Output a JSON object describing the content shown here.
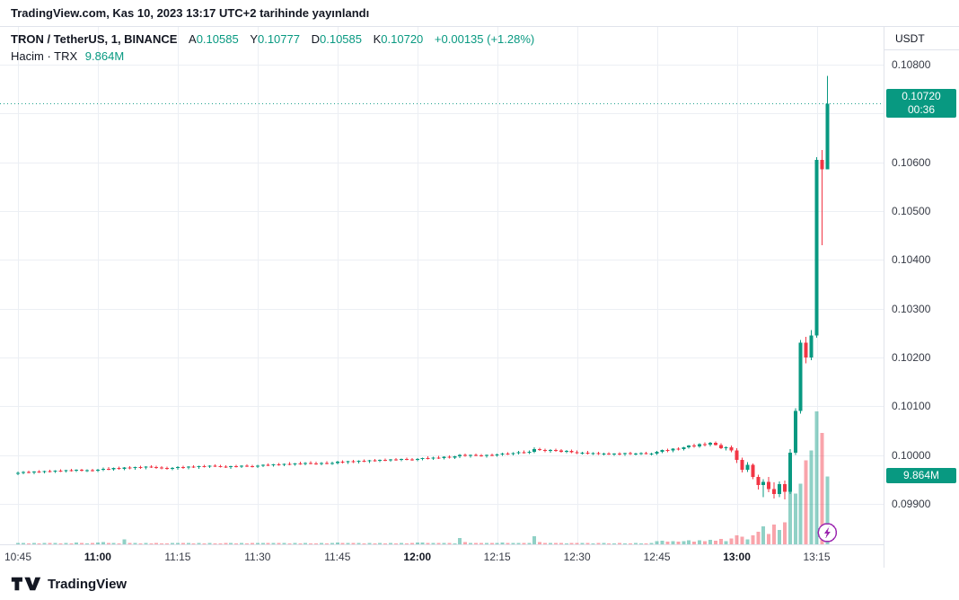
{
  "publish_bar": {
    "text": "TradingView.com, Kas 10, 2023 13:17 UTC+2 tarihinde yayınlandı"
  },
  "legend": {
    "symbol": "TRON / TetherUS, 1, BINANCE",
    "fields": [
      {
        "label": "A",
        "value": "0.10585"
      },
      {
        "label": "Y",
        "value": "0.10777"
      },
      {
        "label": "D",
        "value": "0.10585"
      },
      {
        "label": "K",
        "value": "0.10720"
      }
    ],
    "change": "+0.00135 (+1.28%)",
    "volume_row": {
      "label": "Hacim · TRX",
      "value": "9.864M"
    }
  },
  "price_axis": {
    "unit": "USDT",
    "ticks": [
      "0.10800",
      "0.10700",
      "0.10600",
      "0.10500",
      "0.10400",
      "0.10300",
      "0.10200",
      "0.10100",
      "0.10000",
      "0.09900"
    ],
    "last_price_badge": {
      "price": "0.10720",
      "countdown": "00:36"
    },
    "volume_badge": "9.864M"
  },
  "time_axis": {
    "ticks": [
      {
        "label": "10:45",
        "index": 0,
        "bold": false
      },
      {
        "label": "11:00",
        "index": 15,
        "bold": true
      },
      {
        "label": "11:15",
        "index": 30,
        "bold": false
      },
      {
        "label": "11:30",
        "index": 45,
        "bold": false
      },
      {
        "label": "11:45",
        "index": 60,
        "bold": false
      },
      {
        "label": "12:00",
        "index": 75,
        "bold": true
      },
      {
        "label": "12:15",
        "index": 90,
        "bold": false
      },
      {
        "label": "12:30",
        "index": 105,
        "bold": false
      },
      {
        "label": "12:45",
        "index": 120,
        "bold": false
      },
      {
        "label": "13:00",
        "index": 135,
        "bold": true
      },
      {
        "label": "13:15",
        "index": 150,
        "bold": false
      }
    ]
  },
  "footer": {
    "brand": "TradingView"
  },
  "colors": {
    "up": "#089981",
    "down": "#f23645",
    "vol_up": "rgba(8,153,129,0.45)",
    "vol_down": "rgba(242,54,69,0.45)",
    "grid": "#eceff4",
    "badge_bg": "#089981",
    "border": "#e0e3eb",
    "event_icon": "#9c27b0"
  },
  "chart_data": {
    "type": "candlestick+volume",
    "symbol": "TRON / TetherUS (TRX/USDT)",
    "exchange": "BINANCE",
    "interval": "1 minute",
    "time_start": "10:45",
    "time_end": "13:17",
    "current_bar": {
      "open": 0.10585,
      "high": 0.10777,
      "low": 0.10585,
      "close": 0.1072,
      "volume": "9.864M",
      "countdown": "00:36"
    },
    "ylim": [
      0.09817,
      0.10877
    ],
    "grid": true,
    "scale_note": "candles = [open,high,low,close,volume]; prices as integers in 1e-5 USDT; volume in thousands of TRX",
    "event_marker": {
      "name": "lightning-event",
      "candle_index": 152,
      "color": "#9c27b0"
    },
    "candles": [
      [
        9962,
        9966,
        9959,
        9963,
        210
      ],
      [
        9963,
        9967,
        9961,
        9965,
        180
      ],
      [
        9965,
        9968,
        9962,
        9964,
        150
      ],
      [
        9964,
        9967,
        9961,
        9966,
        190
      ],
      [
        9966,
        9969,
        9963,
        9965,
        160
      ],
      [
        9965,
        9968,
        9962,
        9967,
        220
      ],
      [
        9967,
        9970,
        9964,
        9966,
        170
      ],
      [
        9966,
        9969,
        9963,
        9968,
        200
      ],
      [
        9968,
        9971,
        9965,
        9967,
        150
      ],
      [
        9967,
        9970,
        9964,
        9969,
        180
      ],
      [
        9969,
        9972,
        9966,
        9968,
        160
      ],
      [
        9968,
        9971,
        9965,
        9970,
        240
      ],
      [
        9970,
        9972,
        9966,
        9968,
        170
      ],
      [
        9968,
        9971,
        9965,
        9969,
        150
      ],
      [
        9969,
        9972,
        9966,
        9968,
        190
      ],
      [
        9968,
        9972,
        9965,
        9970,
        260
      ],
      [
        9970,
        9974,
        9967,
        9972,
        310
      ],
      [
        9972,
        9975,
        9969,
        9971,
        200
      ],
      [
        9971,
        9974,
        9968,
        9973,
        180
      ],
      [
        9973,
        9976,
        9970,
        9972,
        160
      ],
      [
        9972,
        9975,
        9969,
        9974,
        700
      ],
      [
        9974,
        9977,
        9971,
        9973,
        170
      ],
      [
        9973,
        9976,
        9970,
        9975,
        190
      ],
      [
        9975,
        9978,
        9972,
        9974,
        150
      ],
      [
        9974,
        9977,
        9971,
        9976,
        180
      ],
      [
        9976,
        9979,
        9973,
        9975,
        160
      ],
      [
        9975,
        9978,
        9972,
        9974,
        170
      ],
      [
        9974,
        9977,
        9971,
        9973,
        150
      ],
      [
        9973,
        9976,
        9970,
        9972,
        160
      ],
      [
        9972,
        9975,
        9969,
        9973,
        180
      ],
      [
        9973,
        9977,
        9970,
        9975,
        200
      ],
      [
        9975,
        9978,
        9972,
        9974,
        170
      ],
      [
        9974,
        9977,
        9971,
        9976,
        190
      ],
      [
        9976,
        9979,
        9973,
        9975,
        160
      ],
      [
        9975,
        9978,
        9972,
        9977,
        180
      ],
      [
        9977,
        9980,
        9974,
        9976,
        150
      ],
      [
        9976,
        9979,
        9973,
        9978,
        170
      ],
      [
        9978,
        9981,
        9975,
        9977,
        160
      ],
      [
        9977,
        9980,
        9974,
        9976,
        150
      ],
      [
        9976,
        9979,
        9973,
        9975,
        170
      ],
      [
        9975,
        9978,
        9972,
        9977,
        190
      ],
      [
        9977,
        9980,
        9974,
        9976,
        160
      ],
      [
        9976,
        9979,
        9973,
        9978,
        180
      ],
      [
        9978,
        9981,
        9975,
        9977,
        150
      ],
      [
        9977,
        9980,
        9974,
        9976,
        170
      ],
      [
        9976,
        9980,
        9973,
        9978,
        200
      ],
      [
        9978,
        9981,
        9975,
        9980,
        220
      ],
      [
        9980,
        9983,
        9977,
        9979,
        180
      ],
      [
        9979,
        9982,
        9976,
        9981,
        190
      ],
      [
        9981,
        9984,
        9978,
        9980,
        170
      ],
      [
        9980,
        9983,
        9977,
        9982,
        210
      ],
      [
        9982,
        9985,
        9979,
        9981,
        160
      ],
      [
        9981,
        9984,
        9978,
        9983,
        180
      ],
      [
        9983,
        9986,
        9980,
        9982,
        150
      ],
      [
        9982,
        9985,
        9979,
        9984,
        170
      ],
      [
        9984,
        9987,
        9981,
        9983,
        160
      ],
      [
        9983,
        9986,
        9980,
        9982,
        150
      ],
      [
        9982,
        9985,
        9979,
        9984,
        190
      ],
      [
        9984,
        9987,
        9981,
        9983,
        160
      ],
      [
        9983,
        9986,
        9980,
        9984,
        170
      ],
      [
        9984,
        9988,
        9981,
        9986,
        230
      ],
      [
        9986,
        9989,
        9983,
        9985,
        180
      ],
      [
        9985,
        9988,
        9982,
        9987,
        200
      ],
      [
        9987,
        9990,
        9984,
        9986,
        170
      ],
      [
        9986,
        9989,
        9983,
        9988,
        190
      ],
      [
        9988,
        9991,
        9985,
        9987,
        160
      ],
      [
        9987,
        9990,
        9984,
        9989,
        180
      ],
      [
        9989,
        9992,
        9986,
        9988,
        150
      ],
      [
        9988,
        9991,
        9985,
        9990,
        170
      ],
      [
        9990,
        9993,
        9987,
        9989,
        160
      ],
      [
        9989,
        9992,
        9986,
        9991,
        180
      ],
      [
        9991,
        9994,
        9988,
        9990,
        150
      ],
      [
        9990,
        9993,
        9987,
        9992,
        170
      ],
      [
        9992,
        9995,
        9989,
        9991,
        160
      ],
      [
        9991,
        9994,
        9988,
        9990,
        180
      ],
      [
        9990,
        9994,
        9987,
        9992,
        260
      ],
      [
        9992,
        9995,
        9989,
        9994,
        240
      ],
      [
        9994,
        9997,
        9991,
        9993,
        200
      ],
      [
        9993,
        9996,
        9990,
        9995,
        180
      ],
      [
        9995,
        9998,
        9992,
        9994,
        190
      ],
      [
        9994,
        9997,
        9991,
        9996,
        170
      ],
      [
        9996,
        9999,
        9993,
        9995,
        180
      ],
      [
        9995,
        9998,
        9992,
        9997,
        160
      ],
      [
        9997,
        10002,
        9994,
        10000,
        900
      ],
      [
        10000,
        10003,
        9996,
        9998,
        300
      ],
      [
        9998,
        10001,
        9995,
        10000,
        220
      ],
      [
        10000,
        10003,
        9997,
        9999,
        190
      ],
      [
        9999,
        10002,
        9996,
        9998,
        170
      ],
      [
        9998,
        10001,
        9995,
        10000,
        180
      ],
      [
        10000,
        10003,
        9997,
        9999,
        190
      ],
      [
        9999,
        10003,
        9996,
        10001,
        210
      ],
      [
        10001,
        10005,
        9998,
        10003,
        230
      ],
      [
        10003,
        10006,
        10000,
        10002,
        190
      ],
      [
        10002,
        10006,
        9999,
        10004,
        180
      ],
      [
        10004,
        10008,
        10001,
        10006,
        200
      ],
      [
        10006,
        10009,
        10003,
        10005,
        170
      ],
      [
        10005,
        10009,
        10002,
        10007,
        190
      ],
      [
        10007,
        10016,
        10004,
        10012,
        1150
      ],
      [
        10012,
        10015,
        10008,
        10010,
        340
      ],
      [
        10010,
        10013,
        10006,
        10008,
        220
      ],
      [
        10008,
        10012,
        10005,
        10010,
        190
      ],
      [
        10010,
        10013,
        10007,
        10009,
        170
      ],
      [
        10009,
        10012,
        10005,
        10007,
        180
      ],
      [
        10007,
        10010,
        10004,
        10008,
        160
      ],
      [
        10008,
        10011,
        10004,
        10006,
        170
      ],
      [
        10006,
        10009,
        10002,
        10004,
        190
      ],
      [
        10004,
        10007,
        10001,
        10005,
        170
      ],
      [
        10005,
        10008,
        10001,
        10003,
        180
      ],
      [
        10003,
        10006,
        10000,
        10004,
        160
      ],
      [
        10004,
        10007,
        10000,
        10002,
        170
      ],
      [
        10002,
        10005,
        9999,
        10003,
        190
      ],
      [
        10003,
        10006,
        10000,
        10001,
        160
      ],
      [
        10001,
        10004,
        9998,
        10003,
        150
      ],
      [
        10003,
        10006,
        9999,
        10002,
        170
      ],
      [
        10002,
        10005,
        9998,
        10004,
        160
      ],
      [
        10004,
        10007,
        10000,
        10002,
        150
      ],
      [
        10002,
        10005,
        9999,
        10003,
        170
      ],
      [
        10003,
        10006,
        10000,
        10004,
        160
      ],
      [
        10004,
        10007,
        10001,
        10002,
        150
      ],
      [
        10002,
        10005,
        9999,
        10003,
        170
      ],
      [
        10003,
        10008,
        10000,
        10007,
        450
      ],
      [
        10007,
        10011,
        10004,
        10010,
        520
      ],
      [
        10010,
        10013,
        10006,
        10009,
        380
      ],
      [
        10009,
        10014,
        10006,
        10013,
        460
      ],
      [
        10013,
        10016,
        10009,
        10012,
        400
      ],
      [
        10012,
        10017,
        10009,
        10016,
        480
      ],
      [
        10016,
        10020,
        10013,
        10019,
        560
      ],
      [
        10019,
        10023,
        10015,
        10018,
        420
      ],
      [
        10018,
        10024,
        10015,
        10022,
        600
      ],
      [
        10022,
        10026,
        10018,
        10021,
        480
      ],
      [
        10021,
        10027,
        10018,
        10025,
        650
      ],
      [
        10025,
        10028,
        10019,
        10020,
        520
      ],
      [
        10020,
        10024,
        10012,
        10014,
        780
      ],
      [
        10014,
        10018,
        10009,
        10016,
        460
      ],
      [
        10016,
        10019,
        10006,
        10009,
        820
      ],
      [
        10009,
        10014,
        9984,
        9990,
        1300
      ],
      [
        9990,
        9995,
        9964,
        9970,
        1100
      ],
      [
        9970,
        9985,
        9965,
        9980,
        700
      ],
      [
        9980,
        9983,
        9950,
        9955,
        1300
      ],
      [
        9955,
        9960,
        9929,
        9938,
        1800
      ],
      [
        9938,
        9950,
        9914,
        9945,
        2600
      ],
      [
        9945,
        9955,
        9924,
        9930,
        1500
      ],
      [
        9930,
        9944,
        9911,
        9920,
        2900
      ],
      [
        9920,
        9946,
        9914,
        9940,
        2100
      ],
      [
        9940,
        9948,
        9909,
        9925,
        3200
      ],
      [
        9925,
        10012,
        9920,
        10005,
        8200
      ],
      [
        10005,
        10096,
        10000,
        10090,
        7400
      ],
      [
        10090,
        10236,
        10085,
        10230,
        8800
      ],
      [
        10230,
        10242,
        10188,
        10200,
        12200
      ],
      [
        10200,
        10256,
        10194,
        10245,
        13600
      ],
      [
        10245,
        10610,
        10240,
        10605,
        19300
      ],
      [
        10605,
        10625,
        10430,
        10585,
        16200
      ],
      [
        10585,
        10777,
        10585,
        10720,
        9864
      ]
    ]
  }
}
